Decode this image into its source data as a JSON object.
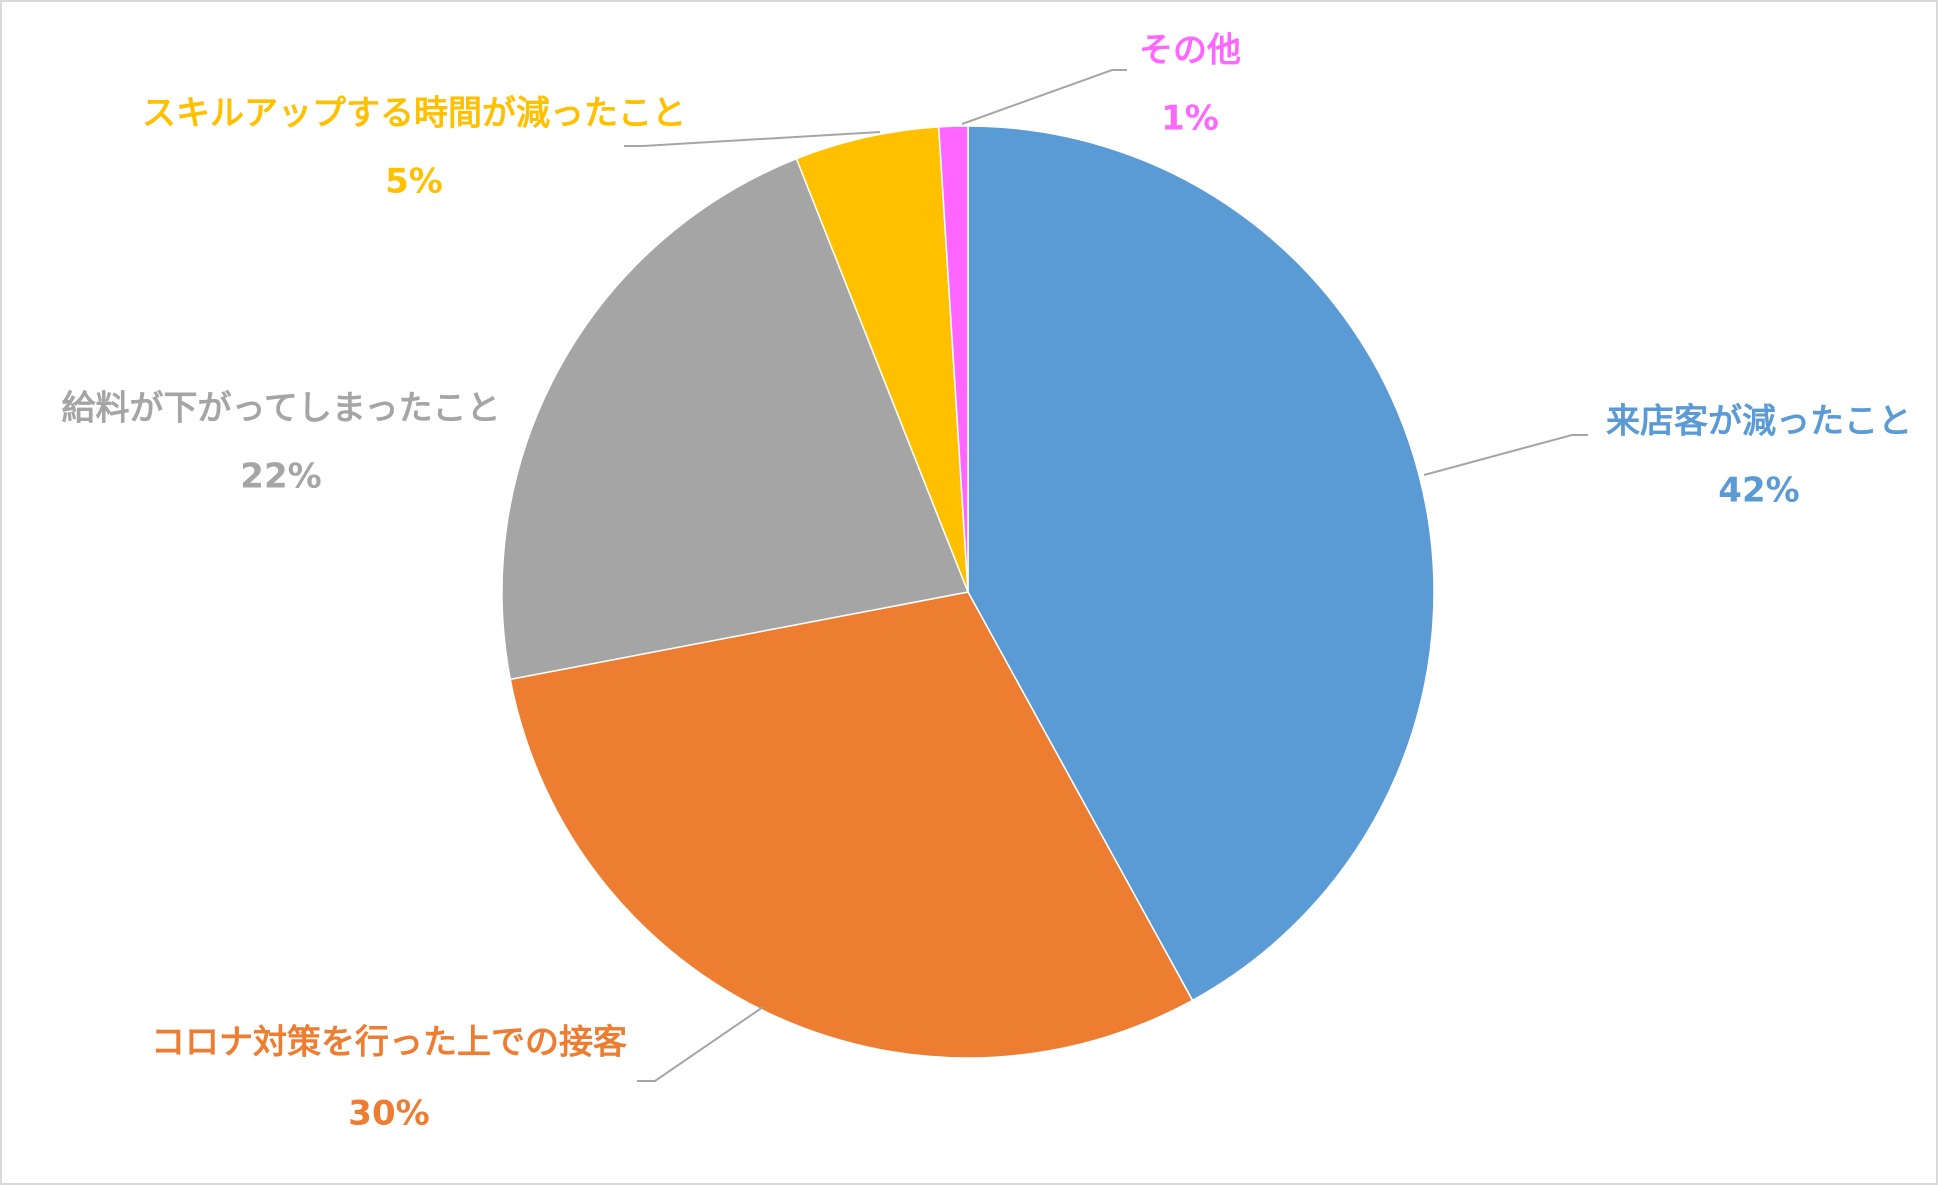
{
  "chart_data": {
    "type": "pie",
    "categories": [
      "来店客が減ったこと",
      "コロナ対策を行った上での接客",
      "給料が下がってしまったこと",
      "スキルアップする時間が減ったこと",
      "その他"
    ],
    "values": [
      42,
      30,
      22,
      5,
      1
    ],
    "value_labels": [
      "42%",
      "30%",
      "22%",
      "5%",
      "1%"
    ],
    "colors": [
      "#5b9bd5",
      "#ed7d31",
      "#a5a5a5",
      "#ffc000",
      "#ff66ff"
    ]
  }
}
